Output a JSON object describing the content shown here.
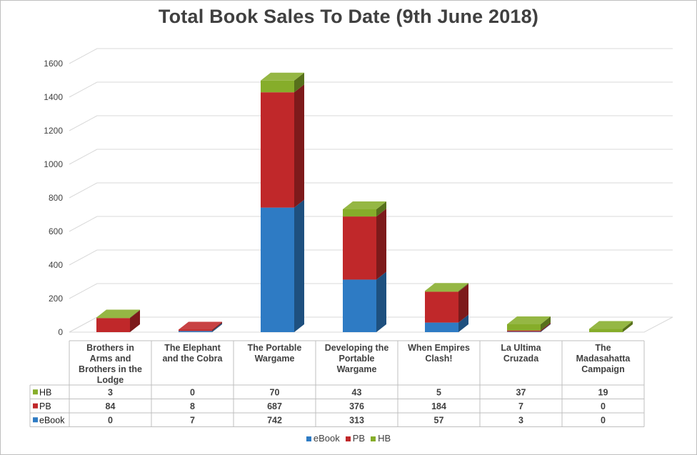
{
  "chart_data": {
    "type": "bar",
    "stacked": true,
    "three_d": true,
    "title": "Total Book Sales To Date (9th June 2018)",
    "categories": [
      "Brothers in Arms and Brothers in the Lodge",
      "The Elephant and the Cobra",
      "The Portable Wargame",
      "Developing the Portable Wargame",
      "When Empires Clash!",
      "La Ultima Cruzada",
      "The Madasahatta Campaign"
    ],
    "category_lines": [
      [
        "Brothers in",
        "Arms and",
        "Brothers in the",
        "Lodge"
      ],
      [
        "The Elephant",
        "and the Cobra"
      ],
      [
        "The Portable",
        "Wargame"
      ],
      [
        "Developing the",
        "Portable",
        "Wargame"
      ],
      [
        "When Empires",
        "Clash!"
      ],
      [
        "La Ultima",
        "Cruzada"
      ],
      [
        "The",
        "Madasahatta",
        "Campaign"
      ]
    ],
    "series": [
      {
        "name": "eBook",
        "color": "#2e7bc4",
        "values": [
          0,
          7,
          742,
          313,
          57,
          3,
          0
        ]
      },
      {
        "name": "PB",
        "color": "#c0282a",
        "values": [
          84,
          8,
          687,
          376,
          184,
          7,
          0
        ]
      },
      {
        "name": "HB",
        "color": "#86ad2a",
        "values": [
          3,
          0,
          70,
          43,
          5,
          37,
          19
        ]
      }
    ],
    "table_rows_order": [
      "HB",
      "PB",
      "eBook"
    ],
    "ylim": [
      0,
      1600
    ],
    "yticks": [
      0,
      200,
      400,
      600,
      800,
      1000,
      1200,
      1400,
      1600
    ],
    "grid": true,
    "legend_position": "bottom",
    "data_table": true
  }
}
